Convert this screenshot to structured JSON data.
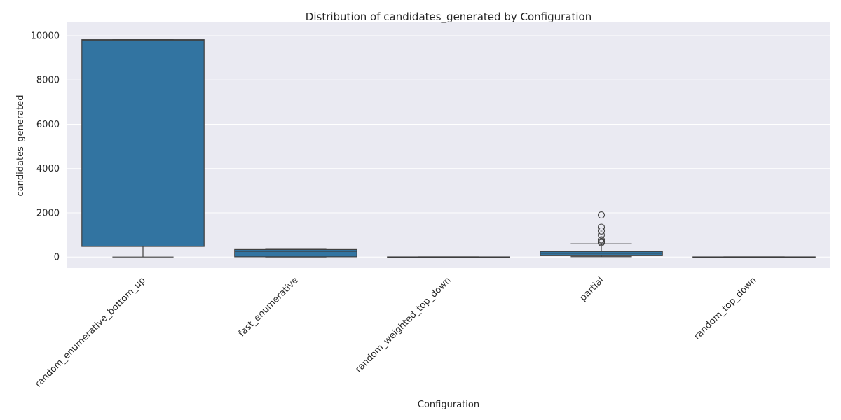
{
  "chart_data": {
    "type": "box",
    "title": "Distribution of candidates_generated by Configuration",
    "xlabel": "Configuration",
    "ylabel": "candidates_generated",
    "ylim": [
      -500,
      10600
    ],
    "yticks": [
      0,
      2000,
      4000,
      6000,
      8000,
      10000
    ],
    "ytick_labels": [
      "0",
      "2000",
      "4000",
      "6000",
      "8000",
      "10000"
    ],
    "grid": true,
    "box_color": "#3274a1",
    "background_color": "#eaeaf2",
    "categories": [
      "random_enumerative_bottom_up",
      "fast_enumerative",
      "random_weighted_top_down",
      "partial",
      "random_top_down"
    ],
    "boxes": [
      {
        "name": "random_enumerative_bottom_up",
        "whisker_low": 0,
        "q1": 480,
        "median": 9800,
        "q3": 9820,
        "whisker_high": 9820,
        "outliers": []
      },
      {
        "name": "fast_enumerative",
        "whisker_low": 0,
        "q1": 10,
        "median": 260,
        "q3": 340,
        "whisker_high": 350,
        "outliers": []
      },
      {
        "name": "random_weighted_top_down",
        "whisker_low": 0,
        "q1": 0,
        "median": 2,
        "q3": 5,
        "whisker_high": 8,
        "outliers": []
      },
      {
        "name": "partial",
        "whisker_low": 15,
        "q1": 60,
        "median": 170,
        "q3": 250,
        "whisker_high": 600,
        "outliers": [
          650,
          700,
          780,
          1000,
          1180,
          1350,
          1900
        ]
      },
      {
        "name": "random_top_down",
        "whisker_low": 0,
        "q1": 0,
        "median": 2,
        "q3": 5,
        "whisker_high": 8,
        "outliers": []
      }
    ]
  }
}
